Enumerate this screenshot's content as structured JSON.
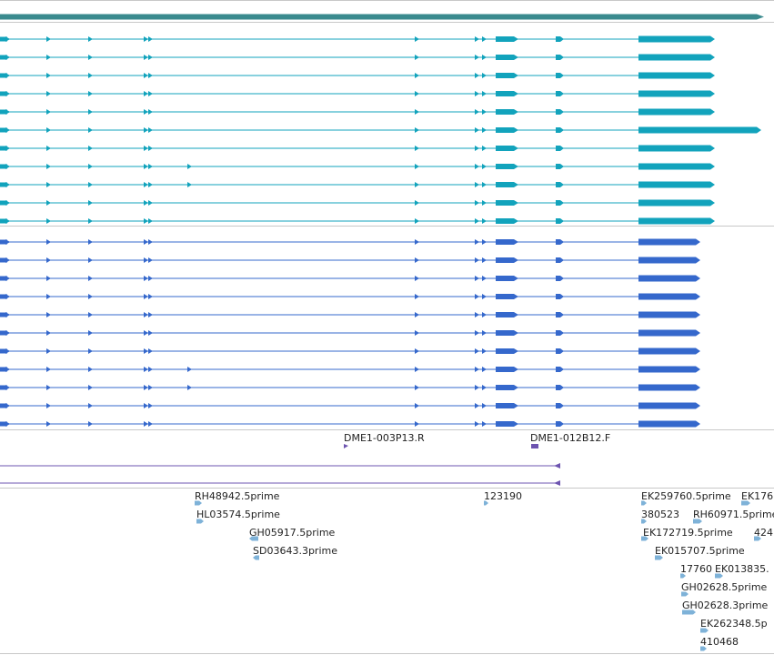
{
  "colors": {
    "gene": "#3a8a8e",
    "transcript_track1": "#12a3bc",
    "transcript_track2": "#3568cc",
    "oligo": "#6d54b0",
    "est": "#7eb2d8",
    "divider": "#c8c8c8",
    "label": "#222222"
  },
  "oligo_labels": [
    "DME1-003P13.R",
    "DME1-012B12.F"
  ],
  "est_labels": [
    "RH48942.5prime",
    "HL03574.5prime",
    "GH05917.5prime",
    "SD03643.3prime",
    "123190",
    "EK259760.5prime",
    "EK176",
    "380523",
    "RH60971.5prime",
    "EK172719.5prime",
    "424",
    "EK015707.5prime",
    "17760",
    "EK013835.",
    "GH02628.5prime",
    "GH02628.3prime",
    "EK262348.5p",
    "410468"
  ]
}
